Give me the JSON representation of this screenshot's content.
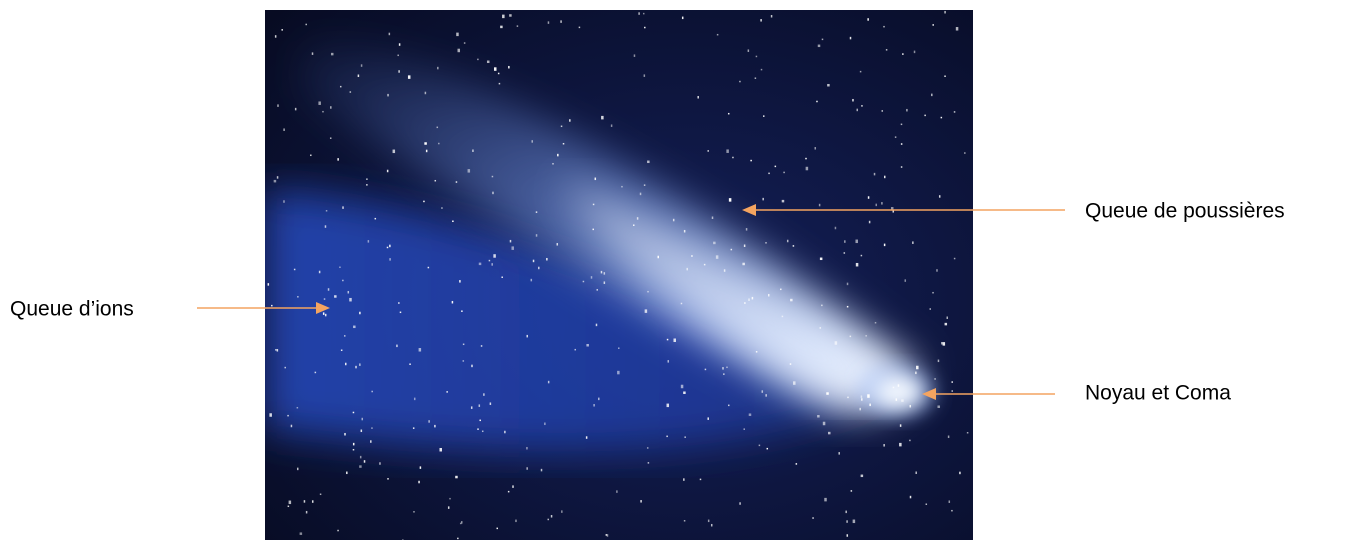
{
  "labels": [
    {
      "text": "Queue de poussières"
    },
    {
      "text": "Queue d’ions"
    },
    {
      "text": "Noyau et Coma"
    }
  ]
}
